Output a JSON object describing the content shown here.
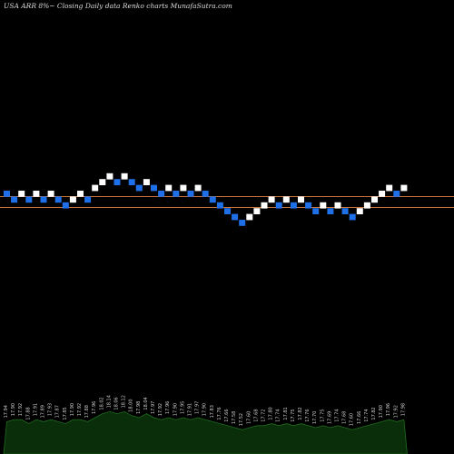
{
  "header": {
    "title": "USA ARR 8%~  Closing Daily data  Renko  charts MunafaSutra.com"
  },
  "colors": {
    "up_brick": "#ffffff",
    "down_brick": "#1f6fe8",
    "line_upper": "#c8743a",
    "line_lower": "#c8743a",
    "volume_fill": "#0a2e0a",
    "volume_stroke": "#1f6b1f"
  },
  "chart_data": {
    "type": "renko",
    "bricks": [
      {
        "level": 0,
        "dir": "down"
      },
      {
        "level": -1,
        "dir": "down"
      },
      {
        "level": 0,
        "dir": "up"
      },
      {
        "level": -1,
        "dir": "down"
      },
      {
        "level": 0,
        "dir": "up"
      },
      {
        "level": -1,
        "dir": "down"
      },
      {
        "level": 0,
        "dir": "up"
      },
      {
        "level": -1,
        "dir": "down"
      },
      {
        "level": -2,
        "dir": "down"
      },
      {
        "level": -1,
        "dir": "up"
      },
      {
        "level": 0,
        "dir": "up"
      },
      {
        "level": -1,
        "dir": "down"
      },
      {
        "level": 1,
        "dir": "up"
      },
      {
        "level": 2,
        "dir": "up"
      },
      {
        "level": 3,
        "dir": "up"
      },
      {
        "level": 2,
        "dir": "down"
      },
      {
        "level": 3,
        "dir": "up"
      },
      {
        "level": 2,
        "dir": "down"
      },
      {
        "level": 1,
        "dir": "down"
      },
      {
        "level": 2,
        "dir": "up"
      },
      {
        "level": 1,
        "dir": "down"
      },
      {
        "level": 0,
        "dir": "down"
      },
      {
        "level": 1,
        "dir": "up"
      },
      {
        "level": 0,
        "dir": "down"
      },
      {
        "level": 1,
        "dir": "up"
      },
      {
        "level": 0,
        "dir": "down"
      },
      {
        "level": 1,
        "dir": "up"
      },
      {
        "level": 0,
        "dir": "down"
      },
      {
        "level": -1,
        "dir": "down"
      },
      {
        "level": -2,
        "dir": "down"
      },
      {
        "level": -3,
        "dir": "down"
      },
      {
        "level": -4,
        "dir": "down"
      },
      {
        "level": -5,
        "dir": "down"
      },
      {
        "level": -4,
        "dir": "up"
      },
      {
        "level": -3,
        "dir": "up"
      },
      {
        "level": -2,
        "dir": "up"
      },
      {
        "level": -1,
        "dir": "up"
      },
      {
        "level": -2,
        "dir": "down"
      },
      {
        "level": -1,
        "dir": "up"
      },
      {
        "level": -2,
        "dir": "down"
      },
      {
        "level": -1,
        "dir": "up"
      },
      {
        "level": -2,
        "dir": "down"
      },
      {
        "level": -3,
        "dir": "down"
      },
      {
        "level": -2,
        "dir": "up"
      },
      {
        "level": -3,
        "dir": "down"
      },
      {
        "level": -2,
        "dir": "up"
      },
      {
        "level": -3,
        "dir": "down"
      },
      {
        "level": -4,
        "dir": "down"
      },
      {
        "level": -3,
        "dir": "up"
      },
      {
        "level": -2,
        "dir": "up"
      },
      {
        "level": -1,
        "dir": "up"
      },
      {
        "level": 0,
        "dir": "up"
      },
      {
        "level": 1,
        "dir": "up"
      },
      {
        "level": 0,
        "dir": "down"
      },
      {
        "level": 1,
        "dir": "up"
      }
    ],
    "reference_lines": [
      "upper",
      "lower"
    ],
    "volume": [
      8,
      9,
      9,
      7,
      9,
      8,
      9,
      8,
      7,
      9,
      9,
      8,
      10,
      12,
      13,
      12,
      13,
      11,
      10,
      12,
      10,
      9,
      10,
      9,
      10,
      9,
      10,
      9,
      8,
      7,
      6,
      5,
      4,
      5,
      6,
      6,
      7,
      6,
      7,
      6,
      7,
      6,
      5,
      6,
      5,
      6,
      5,
      4,
      5,
      6,
      7,
      8,
      9,
      8,
      9
    ],
    "date_labels": [
      "17.94",
      "17.90",
      "17.92",
      "17.88",
      "17.91",
      "17.89",
      "17.93",
      "17.87",
      "17.85",
      "17.90",
      "17.92",
      "17.88",
      "17.96",
      "18.02",
      "18.14",
      "18.06",
      "18.12",
      "18.00",
      "17.98",
      "18.04",
      "17.97",
      "17.92",
      "17.96",
      "17.90",
      "17.95",
      "17.91",
      "17.97",
      "17.90",
      "17.83",
      "17.76",
      "17.66",
      "17.58",
      "17.52",
      "17.60",
      "17.68",
      "17.72",
      "17.80",
      "17.74",
      "17.81",
      "17.75",
      "17.82",
      "17.76",
      "17.70",
      "17.75",
      "17.69",
      "17.74",
      "17.68",
      "17.60",
      "17.66",
      "17.74",
      "17.82",
      "17.90",
      "17.96",
      "17.92",
      "17.98"
    ]
  }
}
